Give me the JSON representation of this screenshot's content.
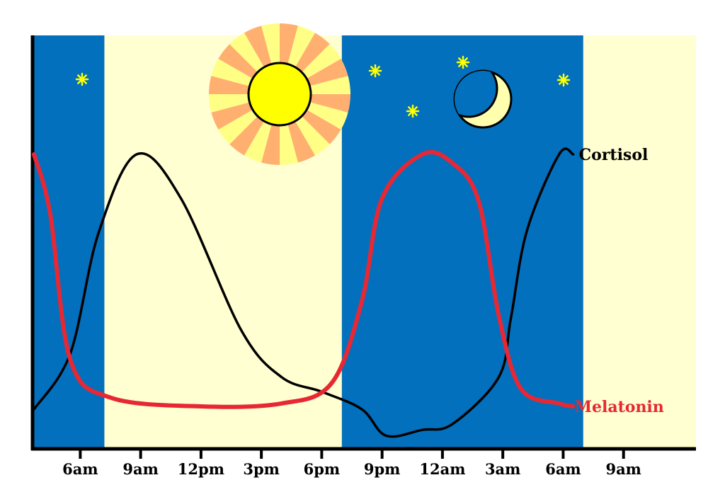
{
  "chart_data": {
    "type": "line",
    "title": "",
    "xlabel": "",
    "ylabel": "",
    "x_ticks": [
      "6am",
      "9am",
      "12pm",
      "3pm",
      "6pm",
      "9pm",
      "12am",
      "3am",
      "6am",
      "9am"
    ],
    "x_range_hours": [
      3.7,
      36.6
    ],
    "y_range": [
      0,
      100
    ],
    "grid": false,
    "bands": [
      {
        "phase": "night",
        "from_hour": 3.7,
        "to_hour": 7.2,
        "color": "#0270BD"
      },
      {
        "phase": "day",
        "from_hour": 7.2,
        "to_hour": 19.0,
        "color": "#FFFFD1"
      },
      {
        "phase": "night",
        "from_hour": 19.0,
        "to_hour": 31.0,
        "color": "#0270BD"
      },
      {
        "phase": "day",
        "from_hour": 31.0,
        "to_hour": 36.6,
        "color": "#FFFFD1"
      }
    ],
    "series": [
      {
        "name": "Cortisol",
        "color": "#000000",
        "points": [
          [
            3.7,
            13
          ],
          [
            5.5,
            32
          ],
          [
            6.9,
            73
          ],
          [
            8.8,
            100
          ],
          [
            11,
            85
          ],
          [
            14,
            40
          ],
          [
            16,
            24
          ],
          [
            18,
            19
          ],
          [
            20,
            13
          ],
          [
            21.2,
            4
          ],
          [
            23,
            6
          ],
          [
            24.5,
            8
          ],
          [
            26.8,
            24
          ],
          [
            27.4,
            44
          ],
          [
            28.2,
            74
          ],
          [
            29.8,
            100
          ],
          [
            30.5,
            100
          ]
        ]
      },
      {
        "name": "Melatonin",
        "color": "#E72834",
        "points": [
          [
            3.7,
            100
          ],
          [
            4.5,
            80
          ],
          [
            5.5,
            30
          ],
          [
            7.5,
            17
          ],
          [
            12,
            14
          ],
          [
            16,
            15
          ],
          [
            18.5,
            22
          ],
          [
            20,
            50
          ],
          [
            21,
            85
          ],
          [
            23,
            100
          ],
          [
            24.5,
            97
          ],
          [
            25.8,
            84
          ],
          [
            26.8,
            45
          ],
          [
            27.9,
            20
          ],
          [
            29.8,
            15
          ],
          [
            30.5,
            14
          ]
        ]
      }
    ],
    "icons": [
      "sun-icon",
      "moon-icon",
      "star-icon"
    ]
  }
}
